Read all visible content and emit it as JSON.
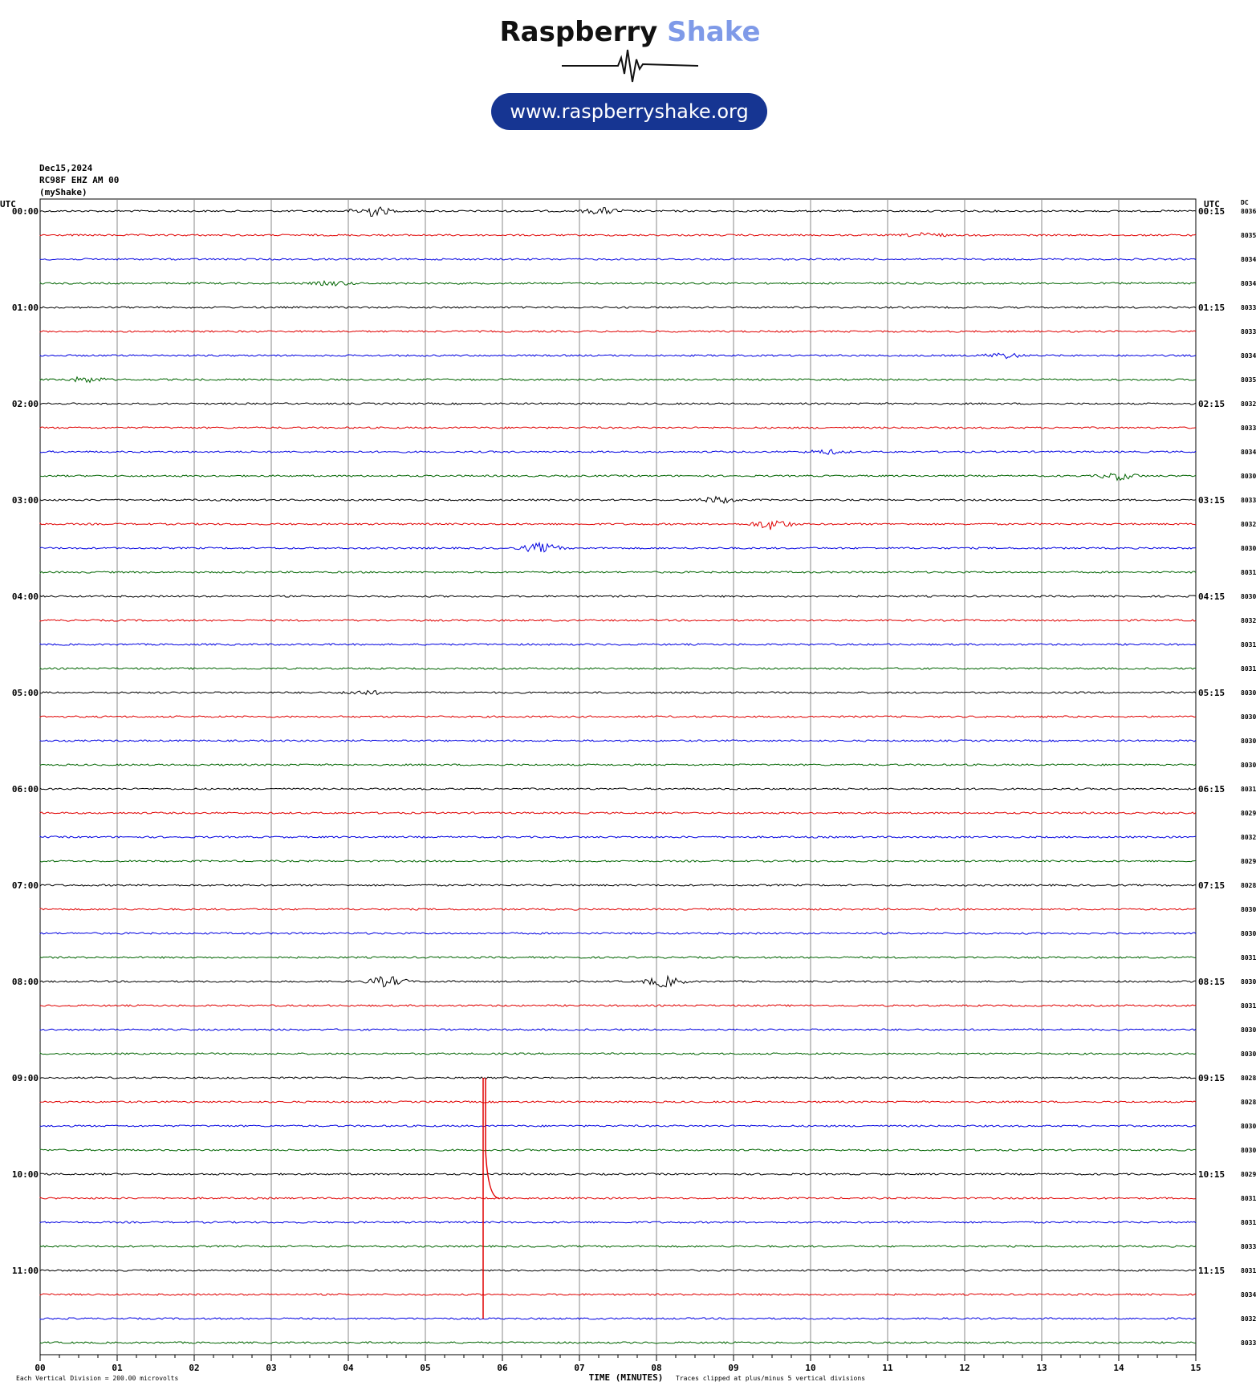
{
  "header": {
    "brand_part1": "Raspberry",
    "brand_part2": "Shake",
    "url": "www.raspberryshake.org",
    "date": "Dec15,2024",
    "station": "RC98F EHZ AM 00",
    "network": "(myShake)"
  },
  "colors": {
    "brand_dark": "#111111",
    "brand_accent": "#7f9ae8",
    "pill": "#163592",
    "trace_cycle": [
      "#000000",
      "#e00000",
      "#0000e0",
      "#006400"
    ]
  },
  "chart_data": {
    "type": "line",
    "title": "",
    "xlabel": "TIME (MINUTES)",
    "left_axis_label": "UTC",
    "right_axis_label": "UTC",
    "dc_label": "DC",
    "x_ticks": [
      "00",
      "01",
      "02",
      "03",
      "04",
      "05",
      "06",
      "07",
      "08",
      "09",
      "10",
      "11",
      "12",
      "13",
      "14",
      "15"
    ],
    "xlim": [
      0,
      15
    ],
    "left_hour_labels": [
      "00:00",
      "01:00",
      "02:00",
      "03:00",
      "04:00",
      "05:00",
      "06:00",
      "07:00",
      "08:00",
      "09:00",
      "10:00",
      "11:00"
    ],
    "right_hour_labels": [
      "00:15",
      "01:15",
      "02:15",
      "03:15",
      "04:15",
      "05:15",
      "06:15",
      "07:15",
      "08:15",
      "09:15",
      "10:15",
      "11:15"
    ],
    "dc_values": [
      "8036",
      "8035",
      "8034",
      "8034",
      "8033",
      "8033",
      "8034",
      "8035",
      "8032",
      "8033",
      "8034",
      "8030",
      "8033",
      "8032",
      "8030",
      "8031",
      "8030",
      "8032",
      "8031",
      "8031",
      "8030",
      "8030",
      "8030",
      "8030",
      "8031",
      "8029",
      "8032",
      "8029",
      "8028",
      "8030",
      "8030",
      "8031",
      "8030",
      "8031",
      "8030",
      "8030",
      "8028",
      "8028",
      "8030",
      "8030",
      "8029",
      "8031",
      "8031",
      "8033",
      "8031",
      "8034",
      "8032",
      "8033"
    ],
    "bursts": [
      {
        "trace": 0,
        "minute": 4.3,
        "amp": 1.0
      },
      {
        "trace": 0,
        "minute": 7.3,
        "amp": 0.6
      },
      {
        "trace": 1,
        "minute": 11.5,
        "amp": 0.4
      },
      {
        "trace": 3,
        "minute": 3.8,
        "amp": 0.4
      },
      {
        "trace": 6,
        "minute": 12.5,
        "amp": 0.5
      },
      {
        "trace": 7,
        "minute": 0.6,
        "amp": 0.5
      },
      {
        "trace": 10,
        "minute": 10.2,
        "amp": 0.4
      },
      {
        "trace": 11,
        "minute": 14.0,
        "amp": 0.7
      },
      {
        "trace": 12,
        "minute": 8.8,
        "amp": 0.6
      },
      {
        "trace": 13,
        "minute": 9.5,
        "amp": 1.0
      },
      {
        "trace": 14,
        "minute": 6.5,
        "amp": 0.9
      },
      {
        "trace": 20,
        "minute": 4.2,
        "amp": 0.4
      },
      {
        "trace": 32,
        "minute": 4.5,
        "amp": 1.0
      },
      {
        "trace": 32,
        "minute": 8.1,
        "amp": 1.0
      }
    ],
    "clipped_event": {
      "trace_start": 36,
      "trace_end": 46,
      "minute": 5.75
    },
    "footer_left": "Each Vertical Division =  200.00 microvolts",
    "footer_right": "Traces clipped at plus/minus 5 vertical divisions"
  }
}
